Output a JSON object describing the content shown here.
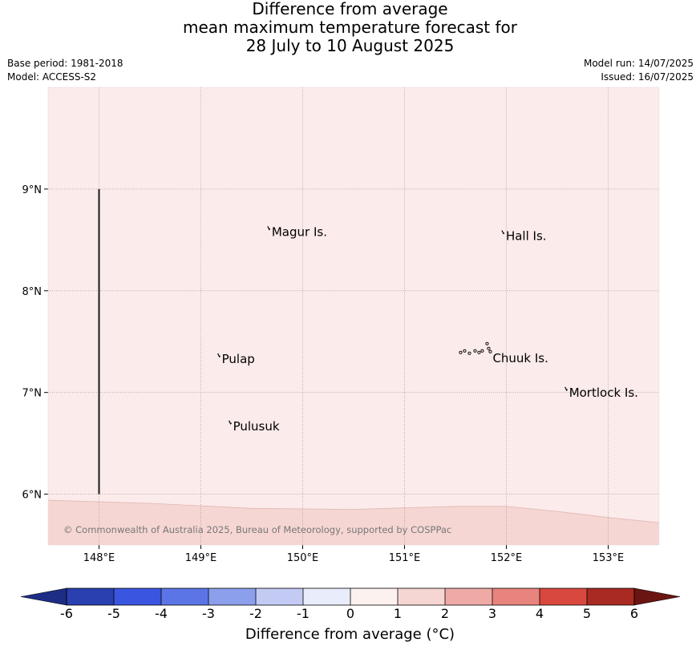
{
  "header": {
    "title_lines": [
      "Difference from average",
      "mean maximum temperature forecast for",
      "28 July to 10 August 2025"
    ],
    "base_period": "Base period: 1981-2018",
    "model": "Model: ACCESS-S2",
    "model_run": "Model run: 14/07/2025",
    "issued": "Issued: 16/07/2025"
  },
  "map": {
    "lon_range": [
      147.5,
      153.5
    ],
    "lat_range": [
      5.5,
      10.0
    ],
    "lon_ticks": [
      {
        "value": 148,
        "label": "148°E"
      },
      {
        "value": 149,
        "label": "149°E"
      },
      {
        "value": 150,
        "label": "150°E"
      },
      {
        "value": 151,
        "label": "151°E"
      },
      {
        "value": 152,
        "label": "152°E"
      },
      {
        "value": 153,
        "label": "153°E"
      }
    ],
    "lat_ticks": [
      {
        "value": 9,
        "label": "9°N"
      },
      {
        "value": 8,
        "label": "8°N"
      },
      {
        "value": 7,
        "label": "7°N"
      },
      {
        "value": 6,
        "label": "6°N"
      }
    ],
    "anomaly_bands": [
      {
        "range": "0 to 1",
        "color": "#fbebea",
        "region": "north"
      },
      {
        "range": "1 to 2",
        "color": "#f5d6d3",
        "region": "south"
      }
    ],
    "band_boundary": [
      {
        "lon": 147.5,
        "lat": 5.94
      },
      {
        "lon": 148.5,
        "lat": 5.91
      },
      {
        "lon": 149.5,
        "lat": 5.86
      },
      {
        "lon": 150.5,
        "lat": 5.85
      },
      {
        "lon": 151.5,
        "lat": 5.88
      },
      {
        "lon": 152.0,
        "lat": 5.88
      },
      {
        "lon": 152.5,
        "lat": 5.83
      },
      {
        "lon": 153.0,
        "lat": 5.77
      },
      {
        "lon": 153.5,
        "lat": 5.72
      }
    ],
    "boundary_line": {
      "lon": 148.0,
      "lat_from": 6.0,
      "lat_to": 9.0
    },
    "places": [
      {
        "name": "Magur Is.",
        "lon": 149.68,
        "lat": 8.57
      },
      {
        "name": "Hall Is.",
        "lon": 151.98,
        "lat": 8.53
      },
      {
        "name": "Pulap",
        "lon": 149.19,
        "lat": 7.32
      },
      {
        "name": "Chuuk Is.",
        "lon": 151.85,
        "lat": 7.33
      },
      {
        "name": "Mortlock Is.",
        "lon": 152.6,
        "lat": 6.99
      },
      {
        "name": "Pulusuk",
        "lon": 149.3,
        "lat": 6.66
      }
    ],
    "copyright": "© Commonwealth of Australia 2025, Bureau of Meteorology, supported by COSPPac"
  },
  "colorbar": {
    "label": "Difference from average (°C)",
    "ticks": [
      "-6",
      "-5",
      "-4",
      "-3",
      "-2",
      "-1",
      "0",
      "1",
      "2",
      "3",
      "4",
      "5",
      "6"
    ],
    "under_color": "#1d2d86",
    "over_color": "#6b1512",
    "colors": [
      "#2a3fb0",
      "#3a55e0",
      "#5b75e6",
      "#8c9fed",
      "#c3cbf5",
      "#e9ecfb",
      "#fdf1ef",
      "#f6d6d3",
      "#efaaa6",
      "#e8847d",
      "#d9483e",
      "#a82a22"
    ]
  }
}
